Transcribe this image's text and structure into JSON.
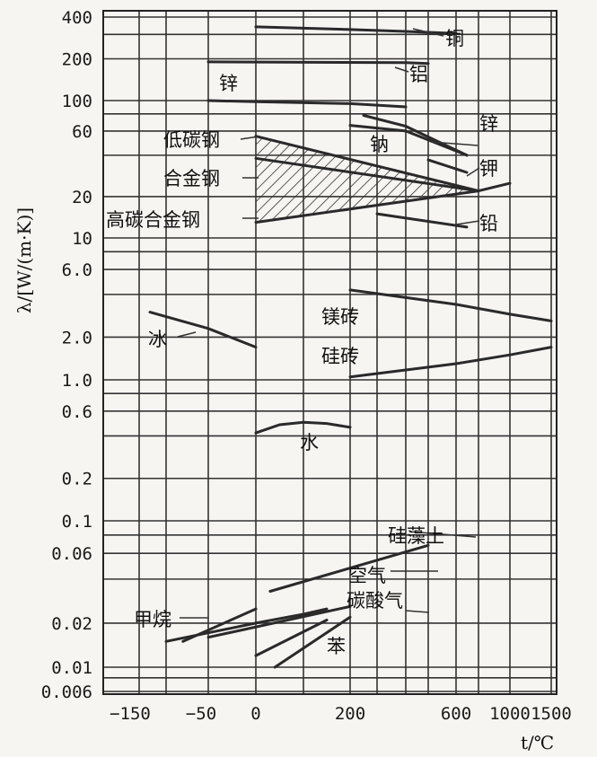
{
  "chart_data": {
    "type": "line",
    "title": "",
    "xlabel": "t/℃",
    "ylabel": "λ/[W/(m·K)]",
    "y_scale": "log",
    "ylim": [
      0.006,
      400
    ],
    "x_tick_labels": [
      "−150",
      "−50",
      "0",
      "200",
      "600",
      "1000",
      "1500"
    ],
    "y_tick_labels": [
      "400",
      "200",
      "100",
      "60",
      "20",
      "10",
      "6.0",
      "2.0",
      "1.0",
      "0.6",
      "0.2",
      "0.1",
      "0.06",
      "0.02",
      "0.01",
      "0.006"
    ],
    "x_grid_values": [
      -150,
      -100,
      -50,
      0,
      100,
      200,
      300,
      400,
      500,
      600,
      800,
      1000,
      1500
    ],
    "y_grid_values": [
      400,
      300,
      200,
      100,
      80,
      60,
      40,
      20,
      10,
      8,
      6,
      4,
      2,
      1,
      0.8,
      0.6,
      0.4,
      0.2,
      0.1,
      0.08,
      0.06,
      0.04,
      0.02,
      0.01,
      0.008,
      0.006
    ],
    "grid": true,
    "series": [
      {
        "name": "铜",
        "x": [
          0,
          200,
          400,
          600
        ],
        "y": [
          340,
          325,
          315,
          305
        ]
      },
      {
        "name": "铝",
        "x": [
          -50,
          400,
          500
        ],
        "y": [
          190,
          188,
          185
        ]
      },
      {
        "name": "锌",
        "x": [
          -50,
          0,
          200,
          400
        ],
        "y": [
          100,
          98,
          95,
          90
        ]
      },
      {
        "name": "锌",
        "x": [
          250,
          400,
          700
        ],
        "y": [
          78,
          65,
          40
        ]
      },
      {
        "name": "钠",
        "x": [
          200,
          400,
          700
        ],
        "y": [
          66,
          60,
          40
        ]
      },
      {
        "name": "钾",
        "x": [
          500,
          700
        ],
        "y": [
          37,
          30
        ]
      },
      {
        "name": "铅",
        "x": [
          300,
          700
        ],
        "y": [
          15,
          12
        ]
      },
      {
        "name": "低碳钢",
        "x": [
          0,
          800
        ],
        "y": [
          55,
          22
        ]
      },
      {
        "name": "合金钢",
        "x": [
          0,
          800
        ],
        "y": [
          38,
          22
        ]
      },
      {
        "name": "高碳合金钢",
        "x": [
          0,
          800
        ],
        "y": [
          13,
          22
        ]
      },
      {
        "name": "高碳合金钢",
        "x": [
          800,
          1000
        ],
        "y": [
          22,
          25
        ]
      },
      {
        "name": "镁砖",
        "x": [
          200,
          600,
          1000,
          1500
        ],
        "y": [
          4.3,
          3.4,
          2.9,
          2.6
        ]
      },
      {
        "name": "硅砖",
        "x": [
          200,
          600,
          1000,
          1500
        ],
        "y": [
          1.05,
          1.3,
          1.5,
          1.7
        ]
      },
      {
        "name": "冰",
        "x": [
          -130,
          -50,
          0
        ],
        "y": [
          3.0,
          2.3,
          1.7
        ]
      },
      {
        "name": "水",
        "x": [
          0,
          50,
          100,
          150,
          200
        ],
        "y": [
          0.42,
          0.48,
          0.5,
          0.49,
          0.46
        ]
      },
      {
        "name": "硅藻土",
        "x": [
          30,
          500
        ],
        "y": [
          0.033,
          0.068
        ]
      },
      {
        "name": "空气",
        "x": [
          -100,
          0,
          100,
          150
        ],
        "y": [
          0.015,
          0.02,
          0.023,
          0.025
        ]
      },
      {
        "name": "甲烷",
        "x": [
          -80,
          0
        ],
        "y": [
          0.015,
          0.025
        ]
      },
      {
        "name": "碳酸气",
        "x": [
          -50,
          200
        ],
        "y": [
          0.016,
          0.026
        ]
      },
      {
        "name": "苯",
        "x": [
          0,
          150
        ],
        "y": [
          0.012,
          0.021
        ]
      },
      {
        "name": "苯",
        "x": [
          40,
          200
        ],
        "y": [
          0.01,
          0.022
        ]
      }
    ],
    "labels": [
      "铜",
      "铝",
      "锌",
      "锌",
      "钠",
      "钾",
      "铅",
      "低碳钢",
      "合金钢",
      "高碳合金钢",
      "镁砖",
      "硅砖",
      "冰",
      "水",
      "硅藻土",
      "空气",
      "甲烷",
      "碳酸气",
      "苯"
    ],
    "hatched_band": [
      "低碳钢",
      "合金钢",
      "高碳合金钢"
    ]
  }
}
